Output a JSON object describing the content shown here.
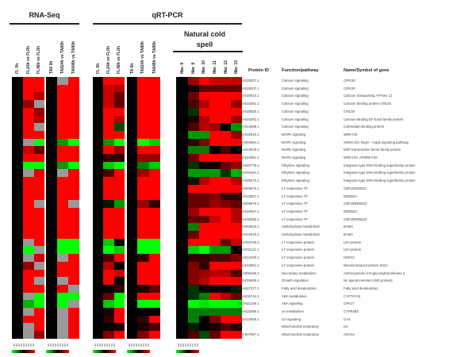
{
  "chart_data": {
    "type": "heatmap",
    "color_scale": {
      "negative": "#00ff00",
      "zero": "#000000",
      "positive": "#ff0000",
      "missing": "#999999"
    },
    "groups": [
      {
        "title": "RNA-Seq",
        "columns": [
          "FL 0h",
          "FL24h vs FL0h",
          "FL48h vs FL0h",
          "TA8 0h",
          "TA824h vs TA80h",
          "TA848h vs TA80h"
        ]
      },
      {
        "title": "qRT-PCR",
        "columns": [
          "FL 0h",
          "FL24h vs FL0h",
          "FL48h vs FL0h",
          "TA 0h",
          "TA824h vs TA80h",
          "TA848h vs TA80h"
        ]
      },
      {
        "title": "Natural cold spell",
        "columns": [
          "Mar. 8",
          "Mar. 9",
          "Mar. 10",
          "Mar. 11",
          "Mar. 12",
          "Mar. 13"
        ]
      }
    ],
    "table_headers": [
      "Protein ID",
      "Function/pathway",
      "Name/Symbol of gene"
    ],
    "rows": [
      [
        "CSA028207.1",
        "Calcium signaling",
        "CIPK20"
      ],
      [
        "CSA028207.1",
        "Calcium signaling",
        "CIPK20"
      ],
      [
        "CSA020510.1",
        "Calcium signaling",
        "Calcium transporting ATPase 12"
      ],
      [
        "CSA023491.1",
        "Calcium signaling",
        "Calcium binding protein CML45"
      ],
      [
        "CSA025825.1",
        "Calcium signaling",
        "CML38"
      ],
      [
        "CSA023491.1",
        "Calcium signaling",
        "Calcium-binding EF-hand family protein"
      ],
      [
        "CSA014688.1",
        "Calcium signaling",
        "Calmodulin-binding protein"
      ],
      [
        "CSA010816.1",
        "MAPK signaling",
        "WRKY33"
      ],
      [
        "CSA003064.1",
        "MAPK signaling",
        "SWIM zinc finger - mapk signaling pathway"
      ],
      [
        "CSA024579.1",
        "MAPK signaling",
        "bZIP transcription factor family protein"
      ],
      [
        "CSA023591.1",
        "MAPK signaling",
        "WRKY33, ATWRKY33"
      ],
      [
        "CSA022779.1",
        "Ethylene signaling",
        "Integrase-type DNA-binding superfamily protein"
      ],
      [
        "CSA034164.1",
        "Ethylene signaling",
        "Integrase-type DNA-binding superfamily protein"
      ],
      [
        "CSA005273.1",
        "Ethylene signaling",
        "Integrase-type DNA-binding superfamily protein"
      ],
      [
        "CSA008675.1",
        "LT responsive TF",
        "CBF1/DREB1C"
      ],
      [
        "CSA010907.1",
        "LT responsive TF",
        "DREB2A"
      ],
      [
        "CSA008675.1",
        "LT responsive TF",
        "CBF4/DREB1D"
      ],
      [
        "CSA010907.1",
        "LT responsive TF",
        "DREB2C"
      ],
      [
        "CSA032055.1",
        "LT responsive TF",
        "CBF4/DREB1D"
      ],
      [
        "CSA003843.1",
        "carbohydrate metabolism",
        "BAM3"
      ],
      [
        "CSA010419.1",
        "carbohydrate metabolism",
        "BAM3"
      ],
      [
        "CSA003726.1",
        "LT responsive protein",
        "LEA protein"
      ],
      [
        "CSA031121.1",
        "LT responsive protein",
        "LEA protein"
      ],
      [
        "CSA012230.1",
        "LT responsive protein",
        "HSFA2"
      ],
      [
        "CSA019801.1",
        "LT responsive protein",
        "Wound-induced protein WI12"
      ],
      [
        "CSA006190.1",
        "Secondary metabolism",
        "Anthocyanidin 3-O-glucosyltransferase 2"
      ],
      [
        "CSA026809.1",
        "Growth regulation",
        "No apical meristem (MS protein)"
      ],
      [
        "CSA027377.1",
        "Fatty acid desaturation",
        "Fatty acid desaturation"
      ],
      [
        "CSA030744.1",
        "ABA metabolism",
        "CYP707A3"
      ],
      [
        "CSA021246.1",
        "ABA signaling",
        "CPK17"
      ],
      [
        "CSA025096.1",
        "JA metabolism",
        "CYP94B3"
      ],
      [
        "CSA022905.1",
        "GA signaling",
        "GA4"
      ],
      [
        "NA",
        "Mitochondrial respiratory",
        "D4"
      ],
      [
        "CSA007567.1",
        "Mitochondrial respiratory",
        "AOX1A"
      ]
    ],
    "values": [
      [
        0,
        1,
        1,
        0,
        null,
        1,
        0,
        1,
        1,
        0,
        1,
        1,
        0,
        0.6,
        1,
        0.8,
        0.8,
        0.8
      ],
      [
        0,
        1,
        1,
        0,
        1,
        1,
        0,
        0.8,
        0.7,
        0,
        1,
        1,
        0,
        0.1,
        0.4,
        0.4,
        0.4,
        0.4
      ],
      [
        0,
        1,
        0.7,
        0,
        1,
        1,
        0,
        0.8,
        0.4,
        0,
        1,
        1,
        0,
        0.4,
        1,
        1,
        1,
        1
      ],
      [
        0,
        0.6,
        null,
        0,
        1,
        1,
        0,
        0.8,
        0.4,
        0,
        1,
        1,
        0,
        0.3,
        0.7,
        1,
        1,
        0.6
      ],
      [
        0,
        1,
        0.6,
        0,
        1,
        1,
        0,
        1,
        1,
        0,
        1,
        1,
        0,
        -0.2,
        1,
        1,
        1,
        1
      ],
      [
        0,
        1,
        0.7,
        0,
        1,
        1,
        0,
        1,
        0.7,
        0,
        1,
        1,
        0,
        0.1,
        0.7,
        1,
        1,
        0.6
      ],
      [
        0,
        1,
        null,
        0,
        1,
        1,
        0,
        1,
        -0.3,
        0,
        1,
        1,
        0,
        0.3,
        0.7,
        0.6,
        0,
        -0.6
      ],
      [
        0,
        1,
        1,
        0,
        1,
        1,
        0,
        1,
        1,
        0,
        1,
        1,
        0,
        -0.6,
        -0.6,
        1,
        1,
        0.6
      ],
      [
        0,
        null,
        -1,
        0,
        -0.6,
        -1,
        0,
        -0.6,
        -1,
        0,
        -1,
        -0.8,
        0,
        0.2,
        0.5,
        1,
        1,
        1
      ],
      [
        0,
        0.8,
        0.4,
        0,
        1,
        1,
        0,
        1,
        0.6,
        0,
        1,
        1,
        0,
        -0.5,
        -0.5,
        0,
        0.3,
        0
      ],
      [
        0,
        1,
        1,
        0,
        1,
        1,
        0,
        0.2,
        0.2,
        0,
        0.6,
        0.6,
        0,
        0.4,
        1,
        1,
        1,
        1
      ],
      [
        0,
        -1,
        -1,
        0,
        -0.6,
        -1,
        0,
        -0.8,
        -1,
        0,
        -0.5,
        -0.8,
        0,
        -0.2,
        0,
        0,
        0.4,
        0.6
      ],
      [
        0,
        null,
        0.9,
        0,
        null,
        1,
        0,
        0.3,
        1,
        0,
        0.6,
        1,
        0,
        -0.6,
        -0.6,
        -0.6,
        -0.2,
        -0.7
      ],
      [
        0,
        1,
        1,
        0,
        1,
        1,
        0,
        1,
        1,
        0,
        1,
        1,
        0,
        -0.1,
        0.7,
        1,
        1,
        0.7
      ],
      [
        0,
        1,
        1,
        0,
        1,
        1,
        0,
        1,
        1,
        0,
        1,
        1,
        0,
        1,
        1,
        1,
        1,
        1
      ],
      [
        0,
        1,
        1,
        0,
        1,
        1,
        0,
        1,
        1,
        0,
        1,
        1,
        0,
        0.4,
        0.4,
        0.5,
        0.2,
        0.2
      ],
      [
        0,
        1,
        null,
        0,
        1,
        null,
        0,
        -0.1,
        -0.6,
        0,
        0.6,
        0.2,
        0,
        0.4,
        0.4,
        0.6,
        0.5,
        0.4
      ],
      [
        0,
        1,
        1,
        0,
        1,
        1,
        0,
        1,
        1,
        0,
        1,
        1,
        0,
        0.6,
        1,
        1,
        1,
        0.7
      ],
      [
        0,
        1,
        1,
        0,
        1,
        1,
        0,
        1,
        1,
        0,
        1,
        1,
        0,
        0.4,
        0.4,
        0.8,
        1,
        0.7
      ],
      [
        0,
        1,
        1,
        0,
        1,
        1,
        0,
        1,
        1,
        0,
        1,
        1,
        0,
        -0.5,
        1,
        1,
        1,
        1
      ],
      [
        0,
        1,
        1,
        0,
        1,
        1,
        0,
        1,
        1,
        0,
        1,
        1,
        0,
        0.4,
        1,
        1,
        1,
        1
      ],
      [
        0,
        null,
        1,
        0,
        -1,
        -1,
        0,
        -0.8,
        0,
        0,
        -1,
        -1,
        0,
        1,
        1,
        1,
        0.4,
        0.8
      ],
      [
        0,
        -1,
        null,
        0,
        -1,
        -1,
        0,
        -1,
        -0.8,
        0,
        -1,
        -1,
        0,
        -0.8,
        -1,
        -0.6,
        -0.6,
        0
      ],
      [
        0,
        null,
        0.8,
        0,
        null,
        1,
        0,
        0.3,
        1,
        0,
        0.2,
        1,
        0,
        0.2,
        0.2,
        0.3,
        0.3,
        0.5
      ],
      [
        0,
        0.6,
        null,
        0,
        1,
        1,
        0,
        0.7,
        0,
        0,
        1,
        1,
        0,
        0.5,
        0.2,
        1,
        1,
        1
      ],
      [
        0,
        1,
        1,
        0,
        1,
        1,
        0,
        1,
        0.8,
        0,
        1,
        1,
        0,
        0.5,
        0.6,
        0.7,
        0.7,
        0.3
      ],
      [
        0,
        1,
        null,
        0,
        null,
        1,
        0,
        1,
        0,
        0,
        1,
        1,
        0,
        0.5,
        0.7,
        1,
        1,
        1
      ],
      [
        0,
        1,
        1,
        0,
        1,
        null,
        0,
        0,
        0.2,
        0,
        0.1,
        0.4,
        0,
        -0.2,
        0,
        0,
        0,
        -0.1
      ],
      [
        0,
        null,
        -1,
        0,
        -1,
        -1,
        0,
        0.4,
        -1,
        0,
        1,
        1,
        0,
        -0.2,
        -0.5,
        1,
        0.7,
        0.4
      ],
      [
        0,
        -0.7,
        -1,
        0,
        -1,
        null,
        0,
        -0.8,
        -1,
        0,
        -1,
        -1,
        0,
        -1,
        -0.9,
        -1,
        -1,
        -1
      ],
      [
        0,
        null,
        1,
        0,
        null,
        1,
        0,
        0.1,
        1,
        0,
        0,
        0,
        0,
        -0.5,
        -0.5,
        -0.5,
        -0.5,
        -0.5
      ],
      [
        0,
        1,
        1,
        0,
        null,
        1,
        0,
        0.2,
        1,
        0,
        0.2,
        1,
        0,
        -0.5,
        0,
        0.5,
        1,
        1
      ],
      [
        0,
        null,
        1,
        0,
        null,
        1,
        0,
        0,
        0.1,
        0,
        0.1,
        0.3,
        0,
        -0.1,
        0,
        0.1,
        0.3,
        0.1
      ],
      [
        0,
        null,
        0.6,
        0,
        null,
        1,
        0,
        0.5,
        1,
        0,
        0.5,
        1,
        0,
        0.3,
        -0.3,
        0.4,
        1,
        1
      ]
    ]
  }
}
